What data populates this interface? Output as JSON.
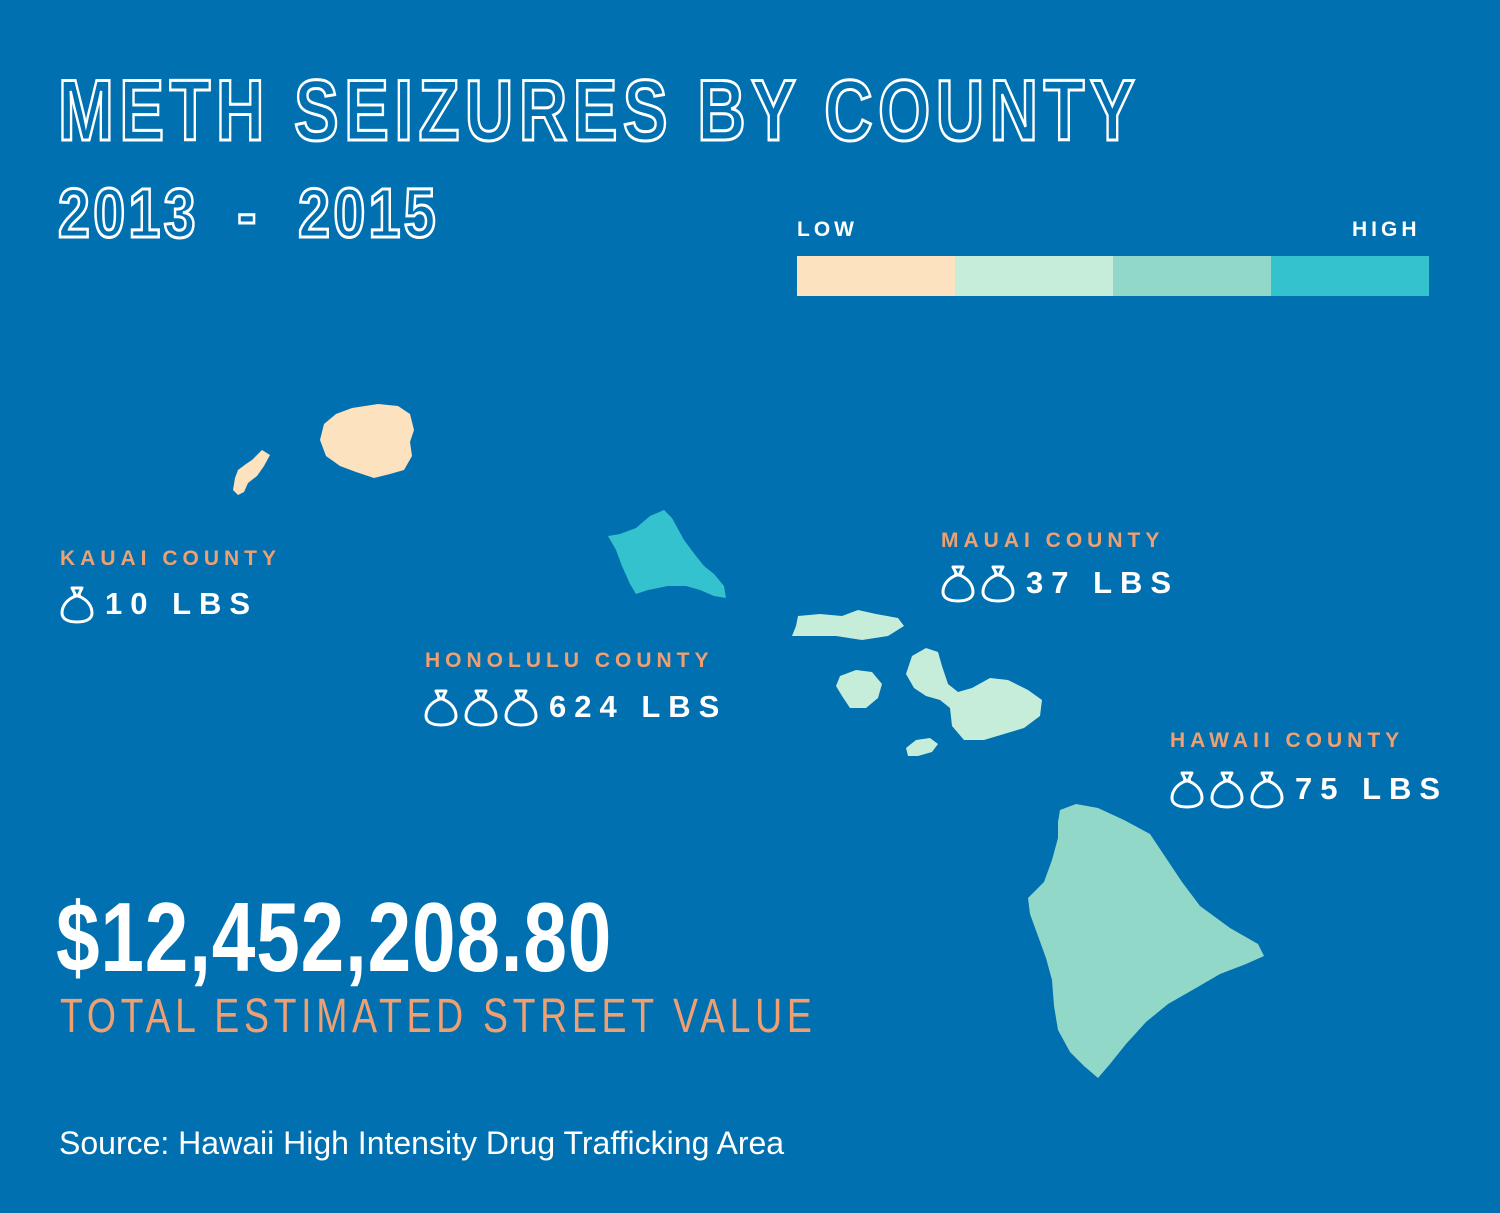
{
  "title": "METH SEIZURES BY COUNTY",
  "subtitle": "2013  -  2015",
  "legend": {
    "low_label": "LOW",
    "high_label": "HIGH",
    "colors": [
      "#fde2c0",
      "#c6ecda",
      "#92d8c8",
      "#33c2ce"
    ]
  },
  "counties": [
    {
      "name": "KAUAI COUNTY",
      "weight": "10 LBS",
      "bags": 1,
      "color": "#fde2c0"
    },
    {
      "name": "HONOLULU COUNTY",
      "weight": "624 LBS",
      "bags": 3,
      "color": "#33c2ce"
    },
    {
      "name": "MAUAI COUNTY",
      "weight": "37 LBS",
      "bags": 2,
      "color": "#c6ecda"
    },
    {
      "name": "HAWAII COUNTY",
      "weight": "75 LBS",
      "bags": 3,
      "color": "#92d8c8"
    }
  ],
  "bag_icon": "money-bag-icon",
  "total_value": "$12,452,208.80",
  "total_label": "TOTAL ESTIMATED STREET VALUE",
  "source": "Source: Hawaii High Intensity Drug Trafficking Area"
}
